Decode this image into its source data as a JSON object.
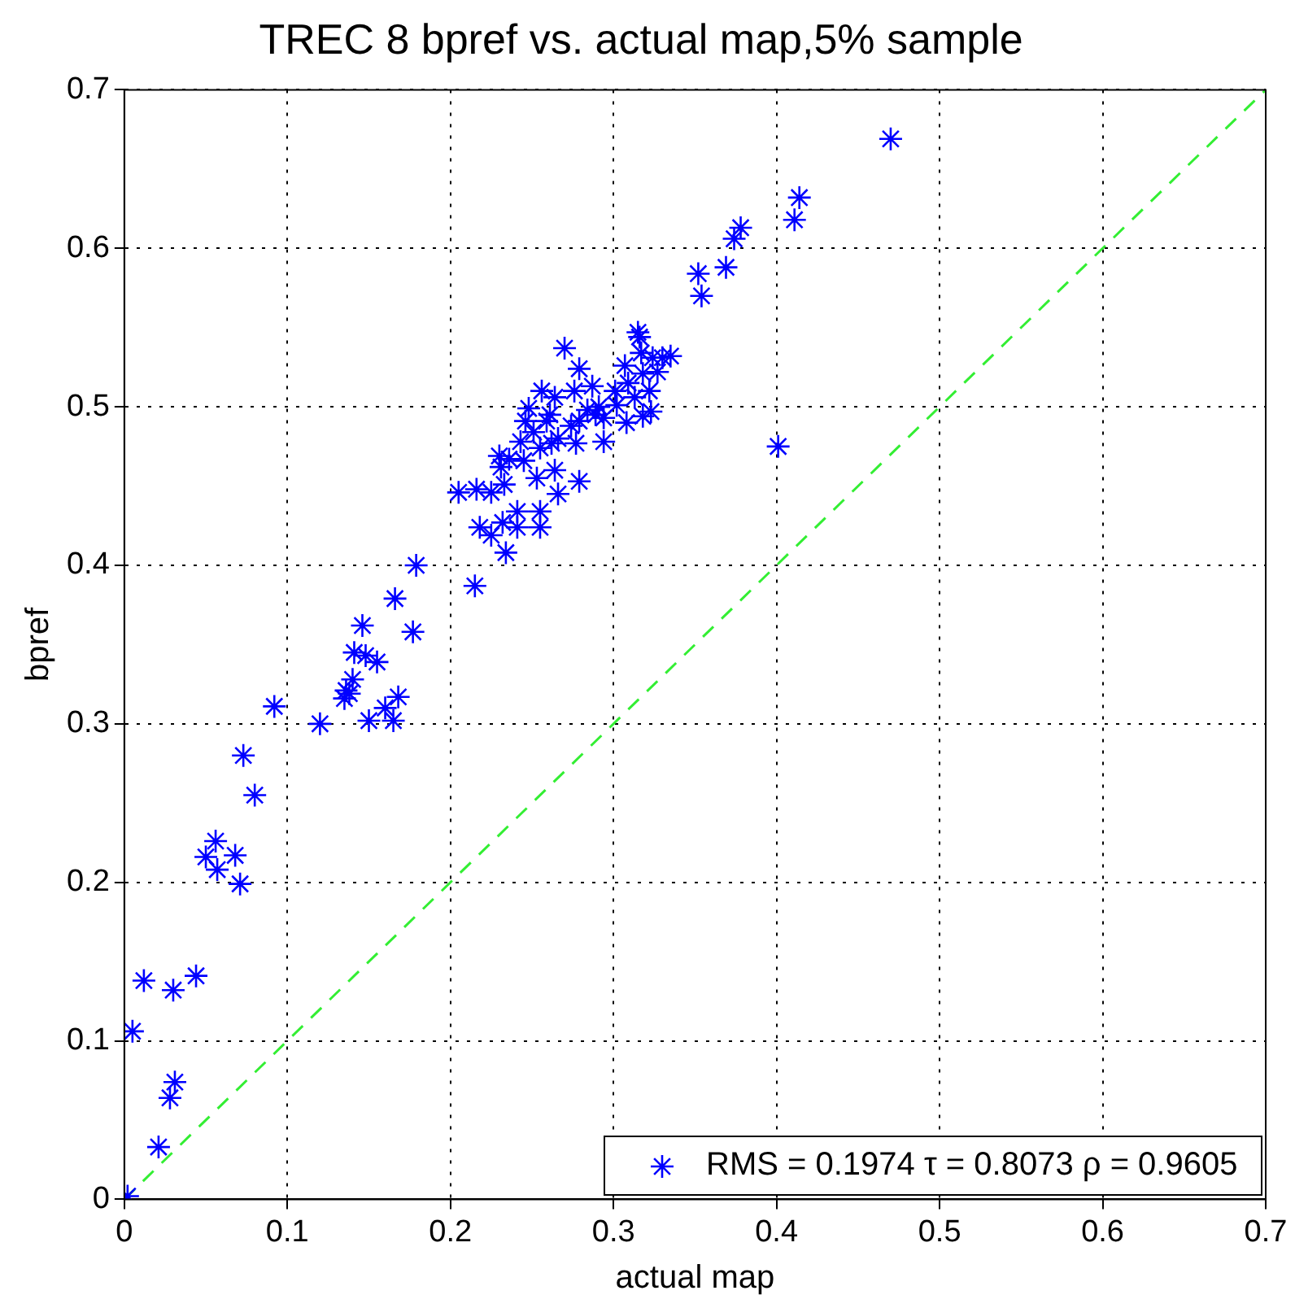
{
  "chart_data": {
    "type": "scatter",
    "title": "TREC 8 bpref vs. actual map,5% sample",
    "xlabel": "actual map",
    "ylabel": "bpref",
    "xlim": [
      0,
      0.7
    ],
    "ylim": [
      0,
      0.7
    ],
    "xticks": [
      0,
      0.1,
      0.2,
      0.3,
      0.4,
      0.5,
      0.6,
      0.7
    ],
    "yticks": [
      0,
      0.1,
      0.2,
      0.3,
      0.4,
      0.5,
      0.6,
      0.7
    ],
    "grid": true,
    "legend": "bottom right",
    "marker": "cross",
    "series": [
      {
        "name": "RMS = 0.1974 τ = 0.8073 ρ = 0.9605",
        "color": "#0000ff",
        "x": [
          0.002,
          0.005,
          0.012,
          0.03,
          0.044,
          0.028,
          0.031,
          0.021,
          0.071,
          0.05,
          0.056,
          0.057,
          0.068,
          0.08,
          0.073,
          0.092,
          0.12,
          0.135,
          0.136,
          0.138,
          0.14,
          0.141,
          0.146,
          0.148,
          0.155,
          0.15,
          0.16,
          0.165,
          0.168,
          0.166,
          0.177,
          0.179,
          0.215,
          0.234,
          0.205,
          0.216,
          0.225,
          0.233,
          0.218,
          0.225,
          0.232,
          0.241,
          0.241,
          0.255,
          0.255,
          0.266,
          0.279,
          0.253,
          0.264,
          0.231,
          0.236,
          0.245,
          0.243,
          0.255,
          0.262,
          0.266,
          0.277,
          0.294,
          0.259,
          0.261,
          0.248,
          0.256,
          0.264,
          0.276,
          0.279,
          0.27,
          0.287,
          0.284,
          0.291,
          0.289,
          0.294,
          0.301,
          0.307,
          0.308,
          0.309,
          0.315,
          0.316,
          0.317,
          0.318,
          0.322,
          0.318,
          0.323,
          0.327,
          0.33,
          0.335,
          0.324,
          0.313,
          0.302,
          0.279,
          0.274,
          0.246,
          0.251,
          0.23,
          0.354,
          0.352,
          0.369,
          0.374,
          0.378,
          0.411,
          0.414,
          0.47,
          0.401
        ],
        "values": [
          0.002,
          0.106,
          0.138,
          0.132,
          0.141,
          0.064,
          0.074,
          0.033,
          0.199,
          0.216,
          0.226,
          0.208,
          0.217,
          0.255,
          0.28,
          0.311,
          0.3,
          0.316,
          0.321,
          0.319,
          0.328,
          0.345,
          0.362,
          0.343,
          0.339,
          0.302,
          0.31,
          0.302,
          0.317,
          0.379,
          0.358,
          0.4,
          0.387,
          0.408,
          0.446,
          0.448,
          0.446,
          0.451,
          0.424,
          0.419,
          0.427,
          0.424,
          0.434,
          0.434,
          0.424,
          0.445,
          0.453,
          0.455,
          0.46,
          0.462,
          0.467,
          0.466,
          0.478,
          0.474,
          0.477,
          0.48,
          0.477,
          0.478,
          0.491,
          0.495,
          0.499,
          0.51,
          0.506,
          0.51,
          0.524,
          0.537,
          0.513,
          0.498,
          0.5,
          0.495,
          0.493,
          0.51,
          0.526,
          0.49,
          0.515,
          0.547,
          0.544,
          0.534,
          0.521,
          0.51,
          0.494,
          0.497,
          0.522,
          0.531,
          0.532,
          0.531,
          0.506,
          0.501,
          0.491,
          0.488,
          0.491,
          0.484,
          0.469,
          0.57,
          0.584,
          0.588,
          0.606,
          0.613,
          0.618,
          0.632,
          0.669,
          0.475
        ]
      },
      {
        "type": "line",
        "color": "#33ee33",
        "line_style": "dashed",
        "marker": "none",
        "x": [
          0,
          0.7
        ],
        "values": [
          0,
          0.7
        ]
      }
    ]
  }
}
